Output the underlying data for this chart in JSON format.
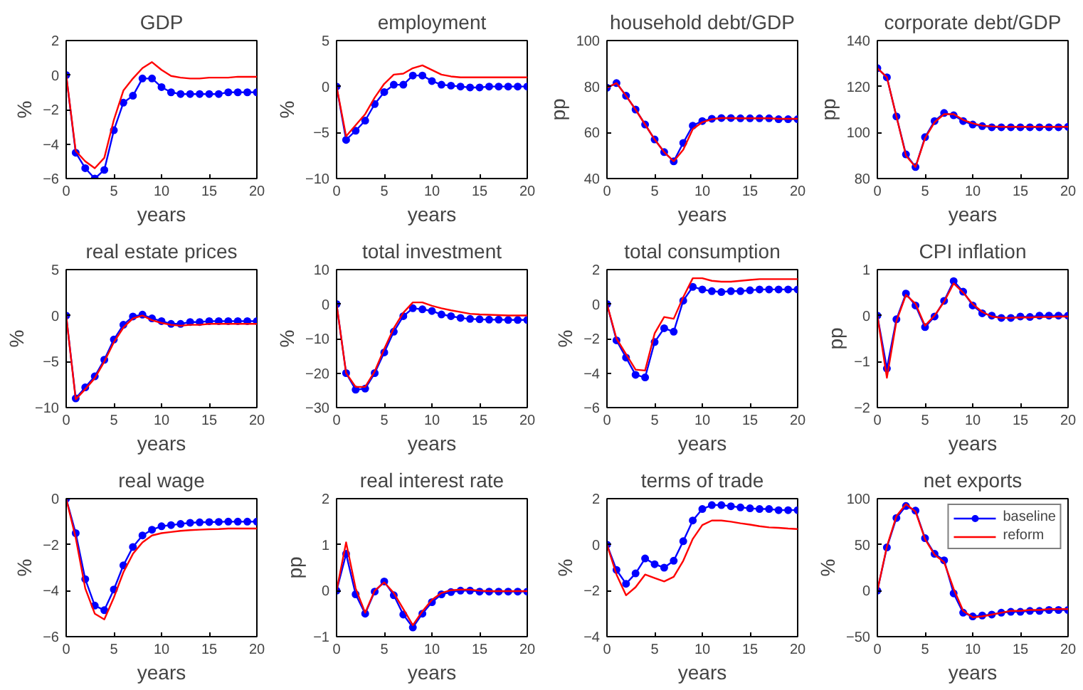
{
  "chart_data": [
    {
      "type": "line",
      "title": "GDP",
      "xlabel": "years",
      "ylabel": "%",
      "x": [
        0,
        1,
        2,
        3,
        4,
        5,
        6,
        7,
        8,
        9,
        10,
        11,
        12,
        13,
        14,
        15,
        16,
        17,
        18,
        19,
        20
      ],
      "xlim": [
        0,
        20
      ],
      "xticks": [
        0,
        5,
        10,
        15,
        20
      ],
      "ylim": [
        -6,
        2
      ],
      "yticks": [
        -6,
        -4,
        -2,
        0,
        2
      ],
      "series": [
        {
          "color": "#0000ff",
          "marker": "circle",
          "values": [
            0,
            -4.5,
            -5.4,
            -6,
            -5.5,
            -3.2,
            -1.6,
            -1.2,
            -0.2,
            -0.2,
            -0.7,
            -1,
            -1.1,
            -1.1,
            -1.1,
            -1.1,
            -1.1,
            -1,
            -1,
            -1,
            -1
          ]
        },
        {
          "color": "#ff0000",
          "values": [
            0,
            -4.4,
            -5,
            -5.4,
            -4.8,
            -2.6,
            -0.9,
            -0.2,
            0.4,
            0.75,
            0.3,
            -0.05,
            -0.15,
            -0.2,
            -0.2,
            -0.15,
            -0.15,
            -0.15,
            -0.1,
            -0.1,
            -0.1
          ]
        }
      ]
    },
    {
      "type": "line",
      "title": "employment",
      "xlabel": "years",
      "ylabel": "%",
      "x": [
        0,
        1,
        2,
        3,
        4,
        5,
        6,
        7,
        8,
        9,
        10,
        11,
        12,
        13,
        14,
        15,
        16,
        17,
        18,
        19,
        20
      ],
      "xlim": [
        0,
        20
      ],
      "xticks": [
        0,
        5,
        10,
        15,
        20
      ],
      "ylim": [
        -10,
        5
      ],
      "yticks": [
        -10,
        -5,
        0,
        5
      ],
      "series": [
        {
          "color": "#0000ff",
          "marker": "circle",
          "values": [
            0,
            -5.8,
            -4.8,
            -3.7,
            -1.9,
            -0.6,
            0.2,
            0.2,
            1.2,
            1.2,
            0.6,
            0.2,
            0.1,
            0,
            -0.1,
            -0.1,
            0,
            0,
            0,
            0,
            0
          ]
        },
        {
          "color": "#ff0000",
          "values": [
            0,
            -5.4,
            -4.2,
            -3,
            -1.2,
            0.3,
            1.3,
            1.4,
            2,
            2.3,
            1.8,
            1.3,
            1.1,
            1,
            1,
            1,
            1,
            1,
            1,
            1,
            1
          ]
        }
      ]
    },
    {
      "type": "line",
      "title": "household debt/GDP",
      "xlabel": "years",
      "ylabel": "pp",
      "x": [
        0,
        1,
        2,
        3,
        4,
        5,
        6,
        7,
        8,
        9,
        10,
        11,
        12,
        13,
        14,
        15,
        16,
        17,
        18,
        19,
        20
      ],
      "xlim": [
        0,
        20
      ],
      "xticks": [
        0,
        5,
        10,
        15,
        20
      ],
      "ylim": [
        40,
        100
      ],
      "yticks": [
        40,
        60,
        80,
        100
      ],
      "series": [
        {
          "color": "#0000ff",
          "marker": "circle",
          "values": [
            79.5,
            81.5,
            76,
            70,
            63.5,
            57,
            51.5,
            47.5,
            55.5,
            63,
            65,
            66,
            66.3,
            66.3,
            66.2,
            66.2,
            66.2,
            66.2,
            65.8,
            65.8,
            65.8
          ]
        },
        {
          "color": "#ff0000",
          "values": [
            79.5,
            81.5,
            76,
            70,
            63.5,
            57,
            51.5,
            47.5,
            52.5,
            61.5,
            64.5,
            65.8,
            66.3,
            66.3,
            66.2,
            66.2,
            66.2,
            66.2,
            66,
            66,
            66
          ]
        }
      ]
    },
    {
      "type": "line",
      "title": "corporate debt/GDP",
      "xlabel": "years",
      "ylabel": "pp",
      "x": [
        0,
        1,
        2,
        3,
        4,
        5,
        6,
        7,
        8,
        9,
        10,
        11,
        12,
        13,
        14,
        15,
        16,
        17,
        18,
        19,
        20
      ],
      "xlim": [
        0,
        20
      ],
      "xticks": [
        0,
        5,
        10,
        15,
        20
      ],
      "ylim": [
        80,
        140
      ],
      "yticks": [
        80,
        100,
        120,
        140
      ],
      "series": [
        {
          "color": "#0000ff",
          "marker": "circle",
          "values": [
            128,
            124,
            107,
            90.5,
            85,
            98,
            105,
            108.5,
            107.5,
            105,
            103.5,
            102.8,
            102.3,
            102.3,
            102.3,
            102.3,
            102.3,
            102.3,
            102.3,
            102.3,
            102.5
          ]
        },
        {
          "color": "#ff0000",
          "values": [
            128,
            124,
            107,
            90,
            85,
            97.5,
            104.5,
            108,
            108,
            105.5,
            104,
            103,
            102.7,
            102.5,
            102.5,
            102.5,
            102.5,
            102.5,
            102.5,
            102.5,
            102.5
          ]
        }
      ]
    },
    {
      "type": "line",
      "title": "real estate prices",
      "xlabel": "years",
      "ylabel": "%",
      "x": [
        0,
        1,
        2,
        3,
        4,
        5,
        6,
        7,
        8,
        9,
        10,
        11,
        12,
        13,
        14,
        15,
        16,
        17,
        18,
        19,
        20
      ],
      "xlim": [
        0,
        20
      ],
      "xticks": [
        0,
        5,
        10,
        15,
        20
      ],
      "ylim": [
        -10,
        5
      ],
      "yticks": [
        -10,
        -5,
        0,
        5
      ],
      "series": [
        {
          "color": "#0000ff",
          "marker": "circle",
          "values": [
            0,
            -9,
            -7.8,
            -6.6,
            -4.8,
            -2.6,
            -1,
            -0.1,
            0.1,
            -0.3,
            -0.6,
            -0.9,
            -0.9,
            -0.7,
            -0.7,
            -0.6,
            -0.6,
            -0.6,
            -0.6,
            -0.6,
            -0.6
          ]
        },
        {
          "color": "#ff0000",
          "values": [
            0,
            -9.1,
            -8,
            -6.8,
            -5,
            -2.9,
            -1.3,
            -0.3,
            0,
            -0.5,
            -0.8,
            -1,
            -1.1,
            -1,
            -1,
            -0.9,
            -0.9,
            -0.9,
            -0.9,
            -0.9,
            -0.9
          ]
        }
      ]
    },
    {
      "type": "line",
      "title": "total investment",
      "xlabel": "years",
      "ylabel": "%",
      "x": [
        0,
        1,
        2,
        3,
        4,
        5,
        6,
        7,
        8,
        9,
        10,
        11,
        12,
        13,
        14,
        15,
        16,
        17,
        18,
        19,
        20
      ],
      "xlim": [
        0,
        20
      ],
      "xticks": [
        0,
        5,
        10,
        15,
        20
      ],
      "ylim": [
        -30,
        10
      ],
      "yticks": [
        -30,
        -20,
        -10,
        0,
        10
      ],
      "series": [
        {
          "color": "#0000ff",
          "marker": "circle",
          "values": [
            0,
            -20,
            -24.8,
            -24.5,
            -20,
            -14,
            -8,
            -3.5,
            -1.2,
            -1.5,
            -2,
            -3,
            -3.5,
            -4,
            -4.3,
            -4.4,
            -4.5,
            -4.5,
            -4.6,
            -4.6,
            -4.6
          ]
        },
        {
          "color": "#ff0000",
          "values": [
            0,
            -20,
            -24,
            -24,
            -19.5,
            -13,
            -7,
            -2.5,
            0.5,
            0.5,
            -0.5,
            -1.2,
            -1.8,
            -2.3,
            -2.8,
            -3,
            -3.1,
            -3.2,
            -3.3,
            -3.3,
            -3.3
          ]
        }
      ]
    },
    {
      "type": "line",
      "title": "total consumption",
      "xlabel": "years",
      "ylabel": "%",
      "x": [
        0,
        1,
        2,
        3,
        4,
        5,
        6,
        7,
        8,
        9,
        10,
        11,
        12,
        13,
        14,
        15,
        16,
        17,
        18,
        19,
        20
      ],
      "xlim": [
        0,
        20
      ],
      "xticks": [
        0,
        5,
        10,
        15,
        20
      ],
      "ylim": [
        -6,
        2
      ],
      "yticks": [
        -6,
        -4,
        -2,
        0,
        2
      ],
      "series": [
        {
          "color": "#0000ff",
          "marker": "circle",
          "values": [
            0,
            -2.1,
            -3.1,
            -4.1,
            -4.25,
            -2.2,
            -1.4,
            -1.6,
            0.2,
            1,
            0.85,
            0.75,
            0.7,
            0.75,
            0.75,
            0.8,
            0.85,
            0.85,
            0.85,
            0.85,
            0.85
          ]
        },
        {
          "color": "#ff0000",
          "values": [
            0,
            -2,
            -2.9,
            -3.8,
            -3.85,
            -1.7,
            -0.75,
            -0.85,
            0.4,
            1.5,
            1.5,
            1.35,
            1.3,
            1.3,
            1.35,
            1.4,
            1.45,
            1.45,
            1.45,
            1.45,
            1.45
          ]
        }
      ]
    },
    {
      "type": "line",
      "title": "CPI inflation",
      "xlabel": "years",
      "ylabel": "pp",
      "x": [
        0,
        1,
        2,
        3,
        4,
        5,
        6,
        7,
        8,
        9,
        10,
        11,
        12,
        13,
        14,
        15,
        16,
        17,
        18,
        19,
        20
      ],
      "xlim": [
        0,
        20
      ],
      "xticks": [
        0,
        5,
        10,
        15,
        20
      ],
      "ylim": [
        -2,
        1
      ],
      "yticks": [
        -2,
        -1,
        0,
        1
      ],
      "series": [
        {
          "color": "#0000ff",
          "marker": "circle",
          "values": [
            0,
            -1.15,
            -0.08,
            0.48,
            0.22,
            -0.25,
            -0.02,
            0.32,
            0.75,
            0.52,
            0.22,
            0.05,
            0,
            -0.05,
            -0.05,
            -0.02,
            -0.03,
            0,
            0,
            0,
            0
          ]
        },
        {
          "color": "#ff0000",
          "values": [
            0,
            -1.35,
            -0.12,
            0.45,
            0.26,
            -0.22,
            0,
            0.3,
            0.7,
            0.5,
            0.25,
            0.08,
            -0.02,
            -0.05,
            -0.05,
            -0.04,
            -0.04,
            -0.03,
            -0.03,
            -0.02,
            -0.02
          ]
        }
      ]
    },
    {
      "type": "line",
      "title": "real wage",
      "xlabel": "years",
      "ylabel": "%",
      "x": [
        0,
        1,
        2,
        3,
        4,
        5,
        6,
        7,
        8,
        9,
        10,
        11,
        12,
        13,
        14,
        15,
        16,
        17,
        18,
        19,
        20
      ],
      "xlim": [
        0,
        20
      ],
      "xticks": [
        0,
        5,
        10,
        15,
        20
      ],
      "ylim": [
        -6,
        0
      ],
      "yticks": [
        -6,
        -4,
        -2,
        0
      ],
      "series": [
        {
          "color": "#0000ff",
          "marker": "circle",
          "values": [
            0,
            -1.5,
            -3.5,
            -4.65,
            -4.85,
            -3.95,
            -2.9,
            -2.1,
            -1.6,
            -1.35,
            -1.2,
            -1.15,
            -1.1,
            -1.05,
            -1.03,
            -1.02,
            -1.01,
            -1,
            -1,
            -1,
            -1
          ]
        },
        {
          "color": "#ff0000",
          "values": [
            0,
            -1.7,
            -3.9,
            -5,
            -5.25,
            -4.3,
            -3.2,
            -2.4,
            -1.9,
            -1.6,
            -1.5,
            -1.45,
            -1.4,
            -1.37,
            -1.35,
            -1.33,
            -1.32,
            -1.3,
            -1.3,
            -1.3,
            -1.3
          ]
        }
      ]
    },
    {
      "type": "line",
      "title": "real interest rate",
      "xlabel": "years",
      "ylabel": "pp",
      "x": [
        0,
        1,
        2,
        3,
        4,
        5,
        6,
        7,
        8,
        9,
        10,
        11,
        12,
        13,
        14,
        15,
        16,
        17,
        18,
        19,
        20
      ],
      "xlim": [
        0,
        20
      ],
      "xticks": [
        0,
        5,
        10,
        15,
        20
      ],
      "ylim": [
        -1,
        2
      ],
      "yticks": [
        -1,
        0,
        1,
        2
      ],
      "series": [
        {
          "color": "#0000ff",
          "marker": "circle",
          "values": [
            0,
            0.8,
            -0.08,
            -0.5,
            -0.02,
            0.2,
            -0.1,
            -0.52,
            -0.8,
            -0.5,
            -0.25,
            -0.08,
            -0.03,
            0,
            0,
            -0.02,
            -0.02,
            -0.02,
            -0.02,
            -0.02,
            -0.02
          ]
        },
        {
          "color": "#ff0000",
          "values": [
            0,
            1.05,
            0.05,
            -0.48,
            0,
            0.18,
            -0.05,
            -0.4,
            -0.75,
            -0.45,
            -0.2,
            -0.05,
            0.01,
            0.02,
            0.02,
            0,
            -0.01,
            -0.01,
            -0.01,
            -0.01,
            -0.01
          ]
        }
      ]
    },
    {
      "type": "line",
      "title": "terms of trade",
      "xlabel": "years",
      "ylabel": "%",
      "x": [
        0,
        1,
        2,
        3,
        4,
        5,
        6,
        7,
        8,
        9,
        10,
        11,
        12,
        13,
        14,
        15,
        16,
        17,
        18,
        19,
        20
      ],
      "xlim": [
        0,
        20
      ],
      "xticks": [
        0,
        5,
        10,
        15,
        20
      ],
      "ylim": [
        -4,
        2
      ],
      "yticks": [
        -4,
        -2,
        0,
        2
      ],
      "series": [
        {
          "color": "#0000ff",
          "marker": "circle",
          "values": [
            0,
            -1.1,
            -1.7,
            -1.25,
            -0.6,
            -0.85,
            -1,
            -0.7,
            0.15,
            1.05,
            1.55,
            1.72,
            1.72,
            1.67,
            1.62,
            1.58,
            1.55,
            1.55,
            1.5,
            1.5,
            1.5
          ]
        },
        {
          "color": "#ff0000",
          "values": [
            0,
            -1.3,
            -2.2,
            -1.85,
            -1.3,
            -1.45,
            -1.6,
            -1.4,
            -0.7,
            0.25,
            0.85,
            1.05,
            1.05,
            1,
            0.93,
            0.87,
            0.8,
            0.75,
            0.73,
            0.7,
            0.68
          ]
        }
      ]
    },
    {
      "type": "line",
      "title": "net exports",
      "xlabel": "years",
      "ylabel": "%",
      "legend": "top right",
      "x": [
        0,
        1,
        2,
        3,
        4,
        5,
        6,
        7,
        8,
        9,
        10,
        11,
        12,
        13,
        14,
        15,
        16,
        17,
        18,
        19,
        20
      ],
      "xlim": [
        0,
        20
      ],
      "xticks": [
        0,
        5,
        10,
        15,
        20
      ],
      "ylim": [
        -50,
        100
      ],
      "yticks": [
        -50,
        0,
        50,
        100
      ],
      "series": [
        {
          "name": "baseline",
          "color": "#0000ff",
          "marker": "circle",
          "values": [
            0,
            47,
            79,
            92,
            87,
            57,
            40,
            33,
            -3,
            -24,
            -28,
            -27,
            -26,
            -24,
            -23,
            -23,
            -22,
            -22,
            -21,
            -21,
            -21
          ]
        },
        {
          "name": "reform",
          "color": "#ff0000",
          "values": [
            0,
            48,
            81,
            94,
            86,
            56,
            39,
            31,
            2,
            -22,
            -29,
            -28,
            -26,
            -24,
            -22,
            -22,
            -21,
            -21,
            -20,
            -20,
            -20
          ]
        }
      ]
    }
  ]
}
